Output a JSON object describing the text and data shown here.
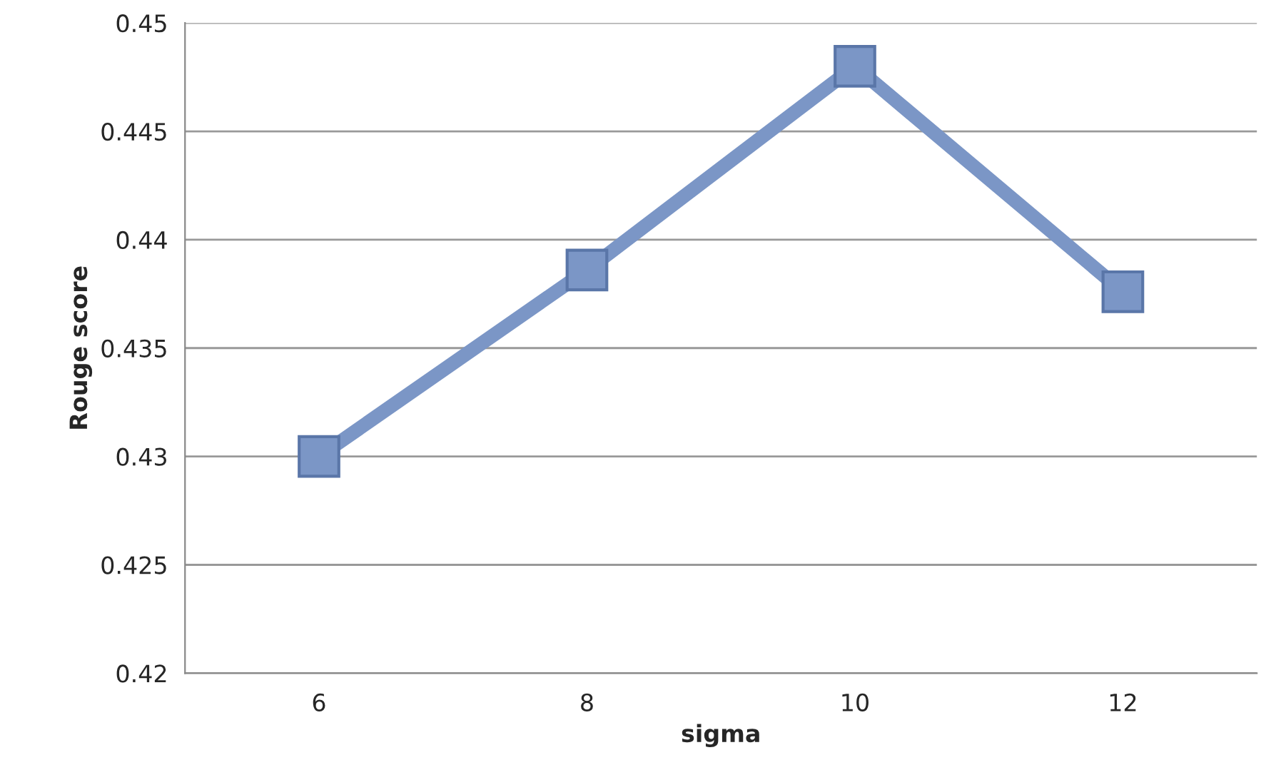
{
  "chart_data": {
    "type": "line",
    "xlabel": "sigma",
    "ylabel": "Rouge score",
    "categories": [
      "6",
      "8",
      "10",
      "12"
    ],
    "series": [
      {
        "color": "#7b96c6",
        "values": [
          0.43,
          0.4386,
          0.448,
          0.4376
        ]
      }
    ],
    "ylim": [
      0.42,
      0.45
    ],
    "yticks": [
      0.42,
      0.425,
      0.43,
      0.435,
      0.44,
      0.445,
      0.45
    ],
    "grid": "y",
    "marker": "square",
    "line_style": "solid"
  }
}
